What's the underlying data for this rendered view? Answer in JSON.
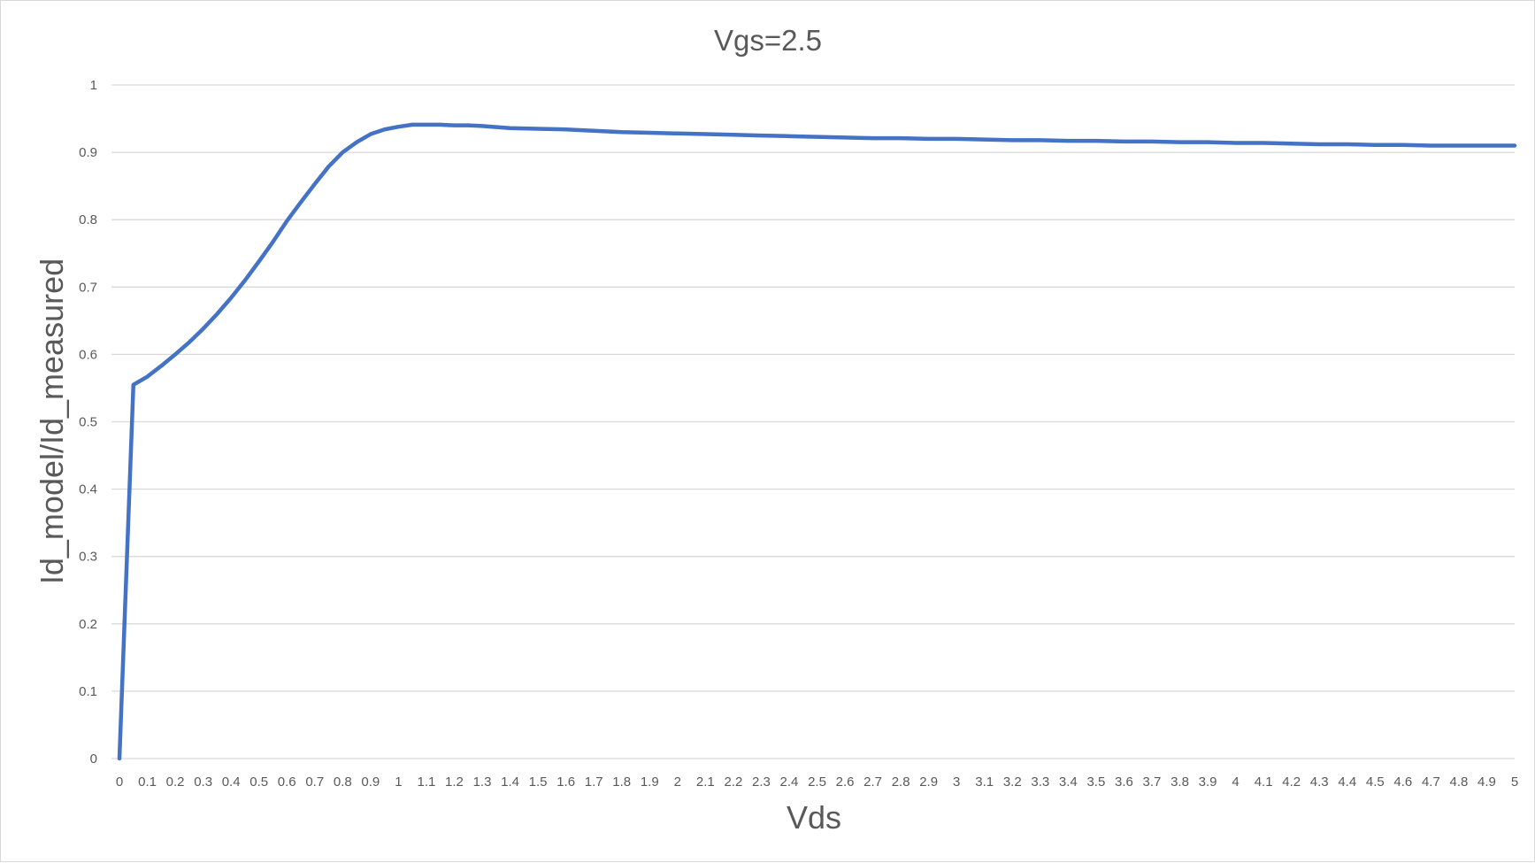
{
  "chart_data": {
    "type": "line",
    "title": "Vgs=2.5",
    "xlabel": "Vds",
    "ylabel": "Id_model/Id_measured",
    "ylim": [
      0,
      1
    ],
    "y_ticks": [
      "0",
      "0.1",
      "0.2",
      "0.3",
      "0.4",
      "0.5",
      "0.6",
      "0.7",
      "0.8",
      "0.9",
      "1"
    ],
    "categories": [
      "0",
      "0.1",
      "0.2",
      "0.3",
      "0.4",
      "0.5",
      "0.6",
      "0.7",
      "0.8",
      "0.9",
      "1",
      "1.1",
      "1.2",
      "1.3",
      "1.4",
      "1.5",
      "1.6",
      "1.7",
      "1.8",
      "1.9",
      "2",
      "2.1",
      "2.2",
      "2.3",
      "2.4",
      "2.5",
      "2.6",
      "2.7",
      "2.8",
      "2.9",
      "3",
      "3.1",
      "3.2",
      "3.3",
      "3.4",
      "3.5",
      "3.6",
      "3.7",
      "3.8",
      "3.9",
      "4",
      "4.1",
      "4.2",
      "4.3",
      "4.4",
      "4.5",
      "4.6",
      "4.7",
      "4.8",
      "4.9",
      "5"
    ],
    "grid": true,
    "legend": "none",
    "series": [
      {
        "color": "#4472c4",
        "x": [
          0,
          0.05,
          0.1,
          0.15,
          0.2,
          0.25,
          0.3,
          0.35,
          0.4,
          0.45,
          0.5,
          0.55,
          0.6,
          0.65,
          0.7,
          0.75,
          0.8,
          0.85,
          0.9,
          0.95,
          1.0,
          1.05,
          1.1,
          1.15,
          1.2,
          1.25,
          1.3,
          1.4,
          1.5,
          1.6,
          1.7,
          1.8,
          1.9,
          2.0,
          2.1,
          2.2,
          2.3,
          2.4,
          2.5,
          2.6,
          2.7,
          2.8,
          2.9,
          3.0,
          3.1,
          3.2,
          3.3,
          3.4,
          3.5,
          3.6,
          3.7,
          3.8,
          3.9,
          4.0,
          4.1,
          4.2,
          4.3,
          4.4,
          4.5,
          4.6,
          4.7,
          4.8,
          4.9,
          5.0
        ],
        "values": [
          0,
          0.555,
          0.567,
          0.583,
          0.6,
          0.618,
          0.638,
          0.66,
          0.684,
          0.71,
          0.738,
          0.767,
          0.798,
          0.826,
          0.853,
          0.879,
          0.9,
          0.915,
          0.927,
          0.934,
          0.938,
          0.941,
          0.941,
          0.941,
          0.94,
          0.94,
          0.939,
          0.936,
          0.935,
          0.934,
          0.932,
          0.93,
          0.929,
          0.928,
          0.927,
          0.926,
          0.925,
          0.924,
          0.923,
          0.922,
          0.921,
          0.921,
          0.92,
          0.92,
          0.919,
          0.918,
          0.918,
          0.917,
          0.917,
          0.916,
          0.916,
          0.915,
          0.915,
          0.914,
          0.914,
          0.913,
          0.912,
          0.912,
          0.911,
          0.911,
          0.91,
          0.91,
          0.91,
          0.91
        ]
      }
    ]
  }
}
